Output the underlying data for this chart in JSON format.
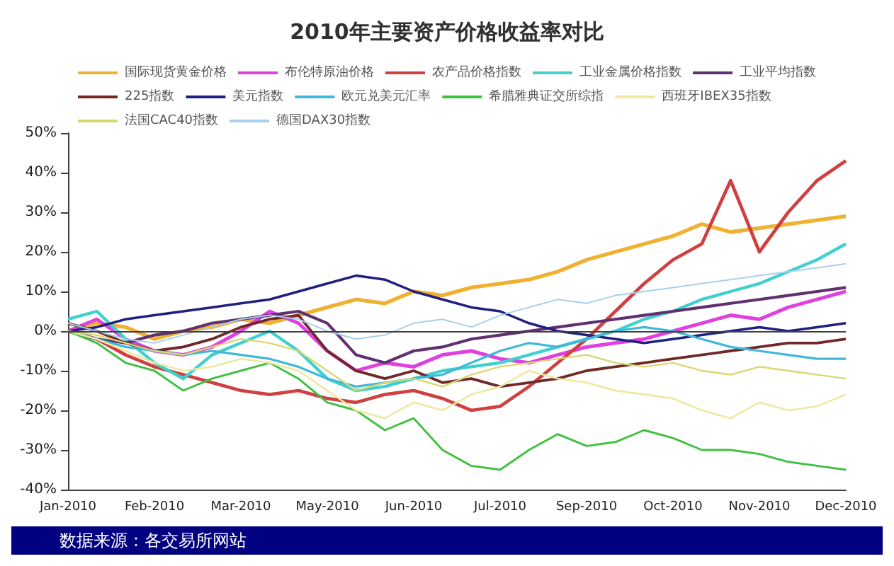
{
  "chart_data": {
    "type": "line",
    "title": "2010年主要资产价格收益率对比",
    "categories": [
      "Jan-2010",
      null,
      null,
      "Feb-2010",
      null,
      null,
      "Mar-2010",
      null,
      null,
      "May-2010",
      null,
      null,
      "Jun-2010",
      null,
      null,
      "Jul-2010",
      null,
      null,
      "Sep-2010",
      null,
      null,
      "Oct-2010",
      null,
      null,
      "Nov-2010",
      null,
      null,
      "Dec-2010"
    ],
    "series": [
      {
        "name": "国际现货黄金价格",
        "color": "#f0b030",
        "values": [
          0,
          2,
          1,
          -2,
          0,
          1,
          3,
          2,
          4,
          6,
          8,
          7,
          10,
          9,
          11,
          12,
          13,
          15,
          18,
          20,
          22,
          24,
          27,
          25,
          26,
          27,
          28,
          29
        ]
      },
      {
        "name": "布伦特原油价格",
        "color": "#e040e0",
        "values": [
          0,
          3,
          -2,
          -5,
          -6,
          -4,
          0,
          5,
          2,
          -5,
          -10,
          -8,
          -9,
          -6,
          -5,
          -7,
          -8,
          -6,
          -4,
          -3,
          -2,
          0,
          2,
          4,
          3,
          6,
          8,
          10
        ]
      },
      {
        "name": "农产品价格指数",
        "color": "#d04040",
        "values": [
          0,
          -2,
          -6,
          -9,
          -11,
          -13,
          -15,
          -16,
          -15,
          -17,
          -18,
          -16,
          -15,
          -17,
          -20,
          -19,
          -14,
          -8,
          -2,
          5,
          12,
          18,
          22,
          38,
          20,
          30,
          38,
          43
        ]
      },
      {
        "name": "工业金属价格指数",
        "color": "#40d0d0",
        "values": [
          3,
          5,
          -2,
          -8,
          -12,
          -6,
          -3,
          0,
          -5,
          -12,
          -15,
          -14,
          -12,
          -10,
          -9,
          -8,
          -6,
          -4,
          -2,
          0,
          3,
          5,
          8,
          10,
          12,
          15,
          18,
          22
        ]
      },
      {
        "name": "工业平均指数",
        "color": "#603070",
        "values": [
          0,
          -2,
          -3,
          -1,
          0,
          2,
          3,
          4,
          5,
          2,
          -6,
          -8,
          -5,
          -4,
          -2,
          -1,
          0,
          1,
          2,
          3,
          4,
          5,
          6,
          7,
          8,
          9,
          10,
          11
        ]
      },
      {
        "name": "225指数",
        "color": "#702828",
        "values": [
          2,
          0,
          -3,
          -5,
          -4,
          -2,
          1,
          3,
          4,
          -5,
          -10,
          -12,
          -10,
          -13,
          -12,
          -14,
          -13,
          -12,
          -10,
          -9,
          -8,
          -7,
          -6,
          -5,
          -4,
          -3,
          -3,
          -2
        ]
      },
      {
        "name": "美元指数",
        "color": "#202080",
        "values": [
          0,
          1,
          3,
          4,
          5,
          6,
          7,
          8,
          10,
          12,
          14,
          13,
          10,
          8,
          6,
          5,
          2,
          0,
          -1,
          -2,
          -3,
          -2,
          -1,
          0,
          1,
          0,
          1,
          2
        ]
      },
      {
        "name": "欧元兑美元汇率",
        "color": "#40b8d8",
        "values": [
          0,
          -2,
          -4,
          -5,
          -6,
          -5,
          -6,
          -7,
          -9,
          -12,
          -14,
          -13,
          -12,
          -11,
          -8,
          -5,
          -3,
          -4,
          -2,
          0,
          1,
          0,
          -2,
          -4,
          -5,
          -6,
          -7,
          -7
        ]
      },
      {
        "name": "希腊雅典证交所综指",
        "color": "#40c040",
        "values": [
          0,
          -3,
          -8,
          -10,
          -15,
          -12,
          -10,
          -8,
          -12,
          -18,
          -20,
          -25,
          -22,
          -30,
          -34,
          -35,
          -30,
          -26,
          -29,
          -28,
          -25,
          -27,
          -30,
          -30,
          -31,
          -33,
          -34,
          -35
        ]
      },
      {
        "name": "西班牙IBEX35指数",
        "color": "#f0e8a0",
        "values": [
          0,
          -2,
          -5,
          -8,
          -10,
          -9,
          -7,
          -8,
          -10,
          -15,
          -20,
          -22,
          -18,
          -20,
          -16,
          -14,
          -10,
          -12,
          -13,
          -15,
          -16,
          -17,
          -20,
          -22,
          -18,
          -20,
          -19,
          -16
        ]
      },
      {
        "name": "法国CAC40指数",
        "color": "#d8d870",
        "values": [
          0,
          -1,
          -3,
          -5,
          -6,
          -4,
          -2,
          -3,
          -5,
          -10,
          -15,
          -13,
          -12,
          -14,
          -11,
          -9,
          -8,
          -7,
          -6,
          -8,
          -9,
          -8,
          -10,
          -11,
          -9,
          -10,
          -11,
          -12
        ]
      },
      {
        "name": "德国DAX30指数",
        "color": "#a8d0f0",
        "values": [
          2,
          0,
          -2,
          -3,
          -1,
          1,
          3,
          4,
          3,
          0,
          -2,
          -1,
          2,
          3,
          1,
          4,
          6,
          8,
          7,
          9,
          10,
          11,
          12,
          13,
          14,
          15,
          16,
          17
        ]
      }
    ],
    "ylim": [
      -40,
      50
    ],
    "yticks": [
      {
        "value": -40,
        "label": "-40%"
      },
      {
        "value": -30,
        "label": "-30%"
      },
      {
        "value": -20,
        "label": "-20%"
      },
      {
        "value": -10,
        "label": "-10%"
      },
      {
        "value": 0,
        "label": "0%"
      },
      {
        "value": 10,
        "label": "10%"
      },
      {
        "value": 20,
        "label": "20%"
      },
      {
        "value": 30,
        "label": "30%"
      },
      {
        "value": 40,
        "label": "40%"
      },
      {
        "value": 50,
        "label": "50%"
      }
    ],
    "ref_lines": [
      {
        "axis": "y",
        "value": 0,
        "color": "#404040"
      }
    ],
    "grid": false,
    "legend": "top",
    "marker": "none",
    "line_style": "solid",
    "annotations": [
      "数据来源：各交易所网站"
    ]
  }
}
